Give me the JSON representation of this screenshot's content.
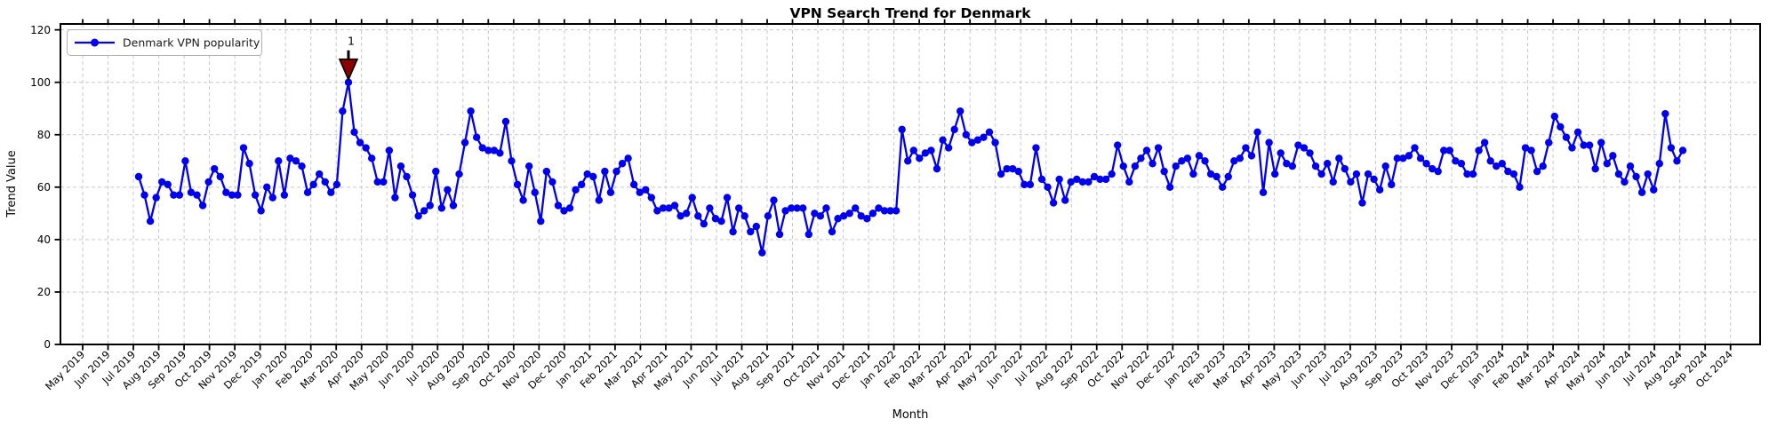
{
  "title": "VPN Search Trend for Denmark",
  "axes": {
    "x_label": "Month",
    "y_label": "Trend Value"
  },
  "legend": {
    "label": "Denmark VPN popularity"
  },
  "annotation": {
    "label": "1",
    "date": "2020-03-15",
    "value": 100
  },
  "colors": {
    "line": "#0000EE",
    "marker": "#0000EE",
    "annotation_fill": "#8B0000",
    "annotation_text": "#8B0000",
    "annotation_edge": "#000000",
    "grid": "#C9C9C9",
    "spine": "#000000",
    "background": "#FFFFFF",
    "legend_border": "#B3B3B3",
    "text": "#000000"
  },
  "chart_data": {
    "type": "line",
    "title": "VPN Search Trend for Denmark",
    "xlabel": "Month",
    "ylabel": "Trend Value",
    "ylim": [
      0,
      122
    ],
    "y_ticks": [
      0,
      20,
      40,
      60,
      80,
      100,
      120
    ],
    "grid": true,
    "grid_style": "dashed",
    "legend_position": "upper left",
    "marker": "circle",
    "x_tick_labels": [
      "May 2019",
      "Jun 2019",
      "Jul 2019",
      "Aug 2019",
      "Sep 2019",
      "Oct 2019",
      "Nov 2019",
      "Dec 2019",
      "Jan 2020",
      "Feb 2020",
      "Mar 2020",
      "Apr 2020",
      "May 2020",
      "Jun 2020",
      "Jul 2020",
      "Aug 2020",
      "Sep 2020",
      "Oct 2020",
      "Nov 2020",
      "Dec 2020",
      "Jan 2021",
      "Feb 2021",
      "Mar 2021",
      "Apr 2021",
      "May 2021",
      "Jun 2021",
      "Jul 2021",
      "Aug 2021",
      "Sep 2021",
      "Oct 2021",
      "Nov 2021",
      "Dec 2021",
      "Jan 2022",
      "Feb 2022",
      "Mar 2022",
      "Apr 2022",
      "May 2022",
      "Jun 2022",
      "Jul 2022",
      "Aug 2022",
      "Sep 2022",
      "Oct 2022",
      "Nov 2022",
      "Dec 2022",
      "Jan 2023",
      "Feb 2023",
      "Mar 2023",
      "Apr 2023",
      "May 2023",
      "Jun 2023",
      "Jul 2023",
      "Aug 2023",
      "Sep 2023",
      "Oct 2023",
      "Nov 2023",
      "Dec 2023",
      "Jan 2024",
      "Feb 2024",
      "Mar 2024",
      "Apr 2024",
      "May 2024",
      "Jun 2024",
      "Jul 2024",
      "Aug 2024",
      "Sep 2024",
      "Oct 2024"
    ],
    "series": [
      {
        "name": "Denmark VPN popularity",
        "frequency": "weekly",
        "start_date": "2019-07-07",
        "end_date": "2024-08-04",
        "values": [
          64,
          57,
          47,
          56,
          62,
          61,
          57,
          57,
          70,
          58,
          57,
          53,
          62,
          67,
          64,
          58,
          57,
          57,
          75,
          69,
          57,
          51,
          60,
          56,
          70,
          57,
          71,
          70,
          68,
          58,
          61,
          65,
          62,
          58,
          61,
          89,
          100,
          81,
          77,
          75,
          71,
          62,
          62,
          74,
          56,
          68,
          64,
          57,
          49,
          51,
          53,
          66,
          52,
          59,
          53,
          65,
          77,
          89,
          79,
          75,
          74,
          74,
          73,
          85,
          70,
          61,
          55,
          68,
          58,
          47,
          66,
          62,
          53,
          51,
          52,
          59,
          61,
          65,
          64,
          55,
          66,
          58,
          66,
          69,
          71,
          61,
          58,
          59,
          56,
          51,
          52,
          52,
          53,
          49,
          50,
          56,
          49,
          46,
          52,
          48,
          47,
          56,
          43,
          52,
          49,
          43,
          45,
          35,
          49,
          55,
          42,
          51,
          52,
          52,
          52,
          42,
          50,
          49,
          52,
          43,
          48,
          49,
          50,
          52,
          49,
          48,
          50,
          52,
          51,
          51,
          51,
          82,
          70,
          74,
          71,
          73,
          74,
          67,
          78,
          75,
          82,
          89,
          80,
          77,
          78,
          79,
          81,
          77,
          65,
          67,
          67,
          66,
          61,
          61,
          75,
          63,
          60,
          54,
          63,
          55,
          62,
          63,
          62,
          62,
          64,
          63,
          63,
          65,
          76,
          68,
          62,
          68,
          71,
          74,
          69,
          75,
          66,
          60,
          68,
          70,
          71,
          65,
          72,
          70,
          65,
          64,
          60,
          64,
          70,
          71,
          75,
          72,
          81,
          58,
          77,
          65,
          73,
          69,
          68,
          76,
          75,
          73,
          68,
          65,
          69,
          62,
          71,
          67,
          62,
          65,
          54,
          65,
          63,
          59,
          68,
          61,
          71,
          71,
          72,
          75,
          71,
          69,
          67,
          66,
          74,
          74,
          70,
          69,
          65,
          65,
          74,
          77,
          70,
          68,
          69,
          66,
          65,
          60,
          75,
          74,
          66,
          68,
          77,
          87,
          83,
          79,
          75,
          81,
          76,
          76,
          67,
          77,
          69,
          72,
          65,
          62,
          68,
          64,
          58,
          65,
          59,
          69,
          88,
          75,
          70,
          74
        ]
      }
    ],
    "annotations": [
      {
        "label": "1",
        "at_max_value": true,
        "value": 100,
        "date": "2020-03-15"
      }
    ]
  }
}
